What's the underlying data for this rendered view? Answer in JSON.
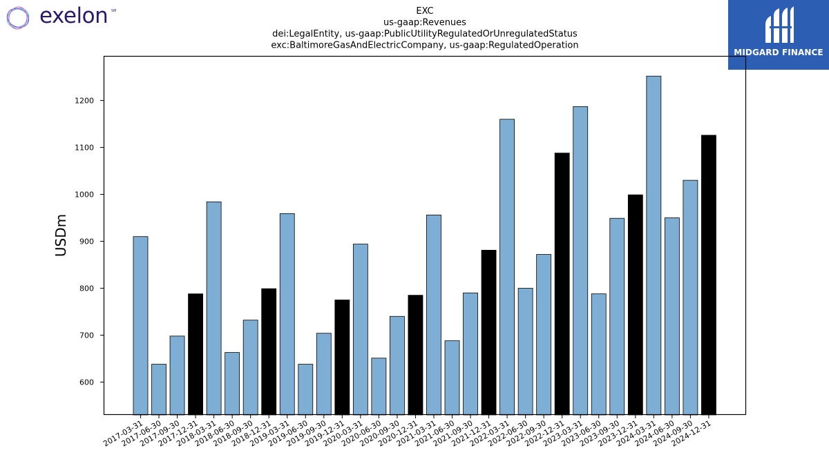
{
  "branding": {
    "company_logo_icon": "exelon-ring-icon",
    "company_logo_text": "exelon",
    "company_logo_mark": "SM",
    "publisher_logo_icon": "midgard-mh-icon",
    "publisher_logo_text": "MIDGARD FINANCE",
    "publisher_bg_color": "#2c5fb3"
  },
  "chart_data": {
    "type": "bar",
    "title_lines": [
      "EXC",
      "us-gaap:Revenues",
      "dei:LegalEntity, us-gaap:PublicUtilityRegulatedOrUnregulatedStatus",
      "exc:BaltimoreGasAndElectricCompany, us-gaap:RegulatedOperation"
    ],
    "ylabel": "USDm",
    "xlabel": "",
    "ylim": [
      530,
      1295
    ],
    "yticks": [
      600,
      700,
      800,
      900,
      1000,
      1100,
      1200
    ],
    "grid": false,
    "colors": {
      "quarter": "#7eaed3",
      "year_end": "#000000",
      "edge": "#000000"
    },
    "categories": [
      "2017-03-31",
      "2017-06-30",
      "2017-09-30",
      "2017-12-31",
      "2018-03-31",
      "2018-06-30",
      "2018-09-30",
      "2018-12-31",
      "2019-03-31",
      "2019-06-30",
      "2019-09-30",
      "2019-12-31",
      "2020-03-31",
      "2020-06-30",
      "2020-09-30",
      "2020-12-31",
      "2021-03-31",
      "2021-06-30",
      "2021-09-30",
      "2021-12-31",
      "2022-03-31",
      "2022-06-30",
      "2022-09-30",
      "2022-12-31",
      "2023-03-31",
      "2023-06-30",
      "2023-09-30",
      "2023-12-31",
      "2024-03-31",
      "2024-06-30",
      "2024-09-30",
      "2024-12-31"
    ],
    "values": [
      910,
      638,
      698,
      788,
      984,
      663,
      732,
      799,
      959,
      638,
      704,
      775,
      894,
      651,
      740,
      785,
      956,
      688,
      790,
      881,
      1160,
      800,
      872,
      1088,
      1187,
      788,
      949,
      999,
      1252,
      950,
      1030,
      1126
    ]
  }
}
